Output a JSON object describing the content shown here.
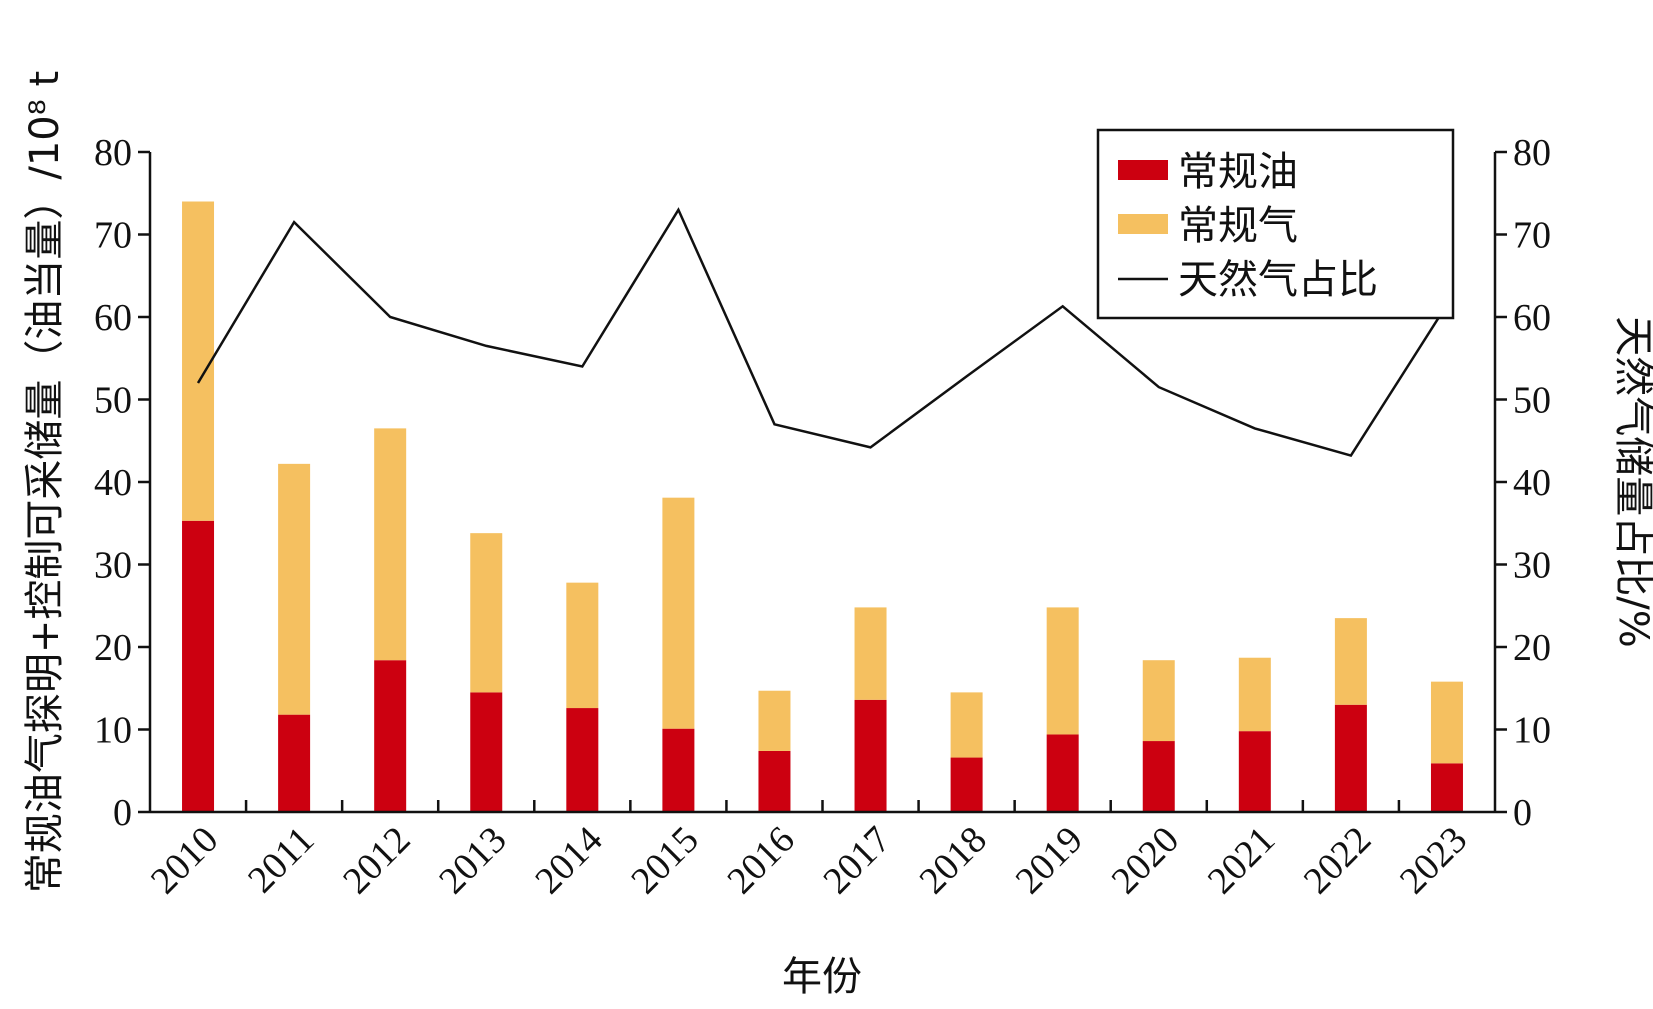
{
  "chart_data": {
    "type": "bar",
    "stacked": true,
    "categories": [
      "2010",
      "2011",
      "2012",
      "2013",
      "2014",
      "2015",
      "2016",
      "2017",
      "2018",
      "2019",
      "2020",
      "2021",
      "2022",
      "2023"
    ],
    "series": [
      {
        "name": "常规油",
        "kind": "bar",
        "axis": "left",
        "color": "#cc0010",
        "values": [
          35.3,
          11.8,
          18.4,
          14.5,
          12.6,
          10.1,
          7.4,
          13.6,
          6.6,
          9.4,
          8.6,
          9.8,
          13.0,
          5.9
        ]
      },
      {
        "name": "常规气",
        "kind": "bar",
        "axis": "left",
        "color": "#f5c060",
        "values": [
          38.7,
          30.4,
          28.1,
          19.3,
          15.2,
          28.0,
          7.3,
          11.2,
          7.9,
          15.4,
          9.8,
          8.9,
          10.5,
          9.9
        ]
      },
      {
        "name": "天然气占比",
        "kind": "line",
        "axis": "right",
        "color": "#111111",
        "values": [
          52.0,
          71.5,
          60.0,
          56.5,
          54.0,
          73.0,
          47.0,
          44.2,
          52.8,
          61.3,
          51.5,
          46.5,
          43.2,
          61.5
        ]
      }
    ],
    "xlabel": "年份",
    "ylabel": "常规油气探明+控制可采储量（油当量）/10⁸ t",
    "y2label": "天然气储量占比/%",
    "ylim": [
      0,
      80
    ],
    "y2lim": [
      0,
      80
    ],
    "yticks": [
      "0",
      "10",
      "20",
      "30",
      "40",
      "50",
      "60",
      "70",
      "80"
    ],
    "y2ticks": [
      "0",
      "10",
      "20",
      "30",
      "40",
      "50",
      "60",
      "70",
      "80"
    ],
    "legend": {
      "placement": "top-right"
    },
    "grid": false
  }
}
